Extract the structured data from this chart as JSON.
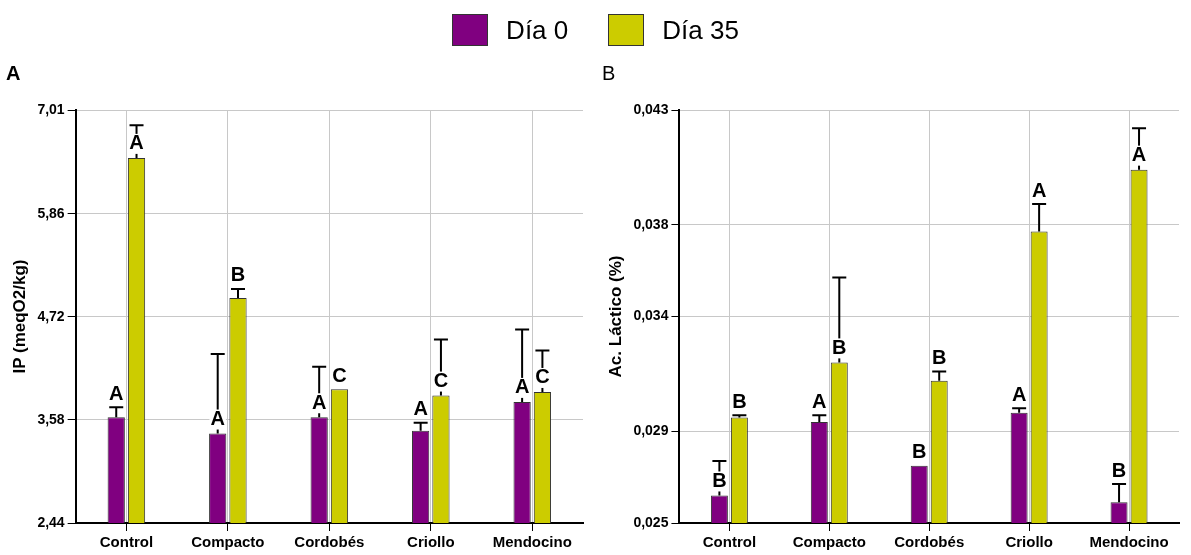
{
  "chart_data": [
    {
      "type": "bar",
      "title": "A",
      "ylabel": "IP (meqO2/kg)",
      "categories": [
        "Control",
        "Compacto",
        "Cordobés",
        "Criollo",
        "Mendocino"
      ],
      "series": [
        {
          "name": "Día 0",
          "color": "#800080",
          "values": [
            3.61,
            3.43,
            3.61,
            3.46,
            3.78
          ],
          "errors": [
            [
              3.61,
              3.72
            ],
            [
              3.43,
              4.31
            ],
            [
              3.61,
              4.17
            ],
            [
              3.46,
              3.55
            ],
            [
              3.78,
              4.58
            ]
          ],
          "value_labels": [
            "A",
            "A",
            "A",
            "A",
            "A"
          ]
        },
        {
          "name": "Día 35",
          "color": "#cccc00",
          "values": [
            6.48,
            4.93,
            3.92,
            3.85,
            3.89
          ],
          "errors": [
            [
              6.48,
              6.84
            ],
            [
              4.93,
              5.03
            ],
            null,
            [
              3.85,
              4.47
            ],
            [
              3.89,
              4.35
            ]
          ],
          "value_labels": [
            "A",
            "B",
            "C",
            "C",
            "C"
          ]
        }
      ],
      "ylim": [
        2.44,
        7.01
      ],
      "yticks": [
        {
          "value": 2.44,
          "label": "2,44"
        },
        {
          "value": 3.58,
          "label": "3,58"
        },
        {
          "value": 4.72,
          "label": "4,72"
        },
        {
          "value": 5.86,
          "label": "5,86"
        },
        {
          "value": 7.01,
          "label": "7,01"
        }
      ],
      "grid": true,
      "legend": "top"
    },
    {
      "type": "bar",
      "title": "B",
      "ylabel": "Ac. Láctico (%)",
      "categories": [
        "Control",
        "Compacto",
        "Cordobés",
        "Criollo",
        "Mendocino"
      ],
      "series": [
        {
          "color": "#800080",
          "values": [
            0.0262,
            0.0294,
            0.0275,
            0.0298,
            0.0259
          ],
          "errors": [
            [
              0.0262,
              0.0277
            ],
            [
              0.0294,
              0.0297
            ],
            null,
            [
              0.0298,
              0.03
            ],
            [
              0.0259,
              0.0267
            ]
          ],
          "value_labels": [
            "B",
            "A",
            "B",
            "A",
            "B"
          ]
        },
        {
          "color": "#cccc00",
          "values": [
            0.0296,
            0.032,
            0.0312,
            0.0377,
            0.0404
          ],
          "errors": [
            [
              0.0296,
              0.0297
            ],
            [
              0.032,
              0.0357
            ],
            [
              0.0312,
              0.0316
            ],
            [
              0.0377,
              0.0389
            ],
            [
              0.0404,
              0.0422
            ]
          ],
          "value_labels": [
            "B",
            "B",
            "B",
            "A",
            "A"
          ]
        }
      ],
      "ylim": [
        0.025,
        0.043
      ],
      "yticks": [
        {
          "value": 0.025,
          "label": "0,025"
        },
        {
          "value": 0.029,
          "label": "0,029"
        },
        {
          "value": 0.034,
          "label": "0,034"
        },
        {
          "value": 0.038,
          "label": "0,038"
        },
        {
          "value": 0.043,
          "label": "0,043"
        }
      ],
      "grid": true
    }
  ]
}
